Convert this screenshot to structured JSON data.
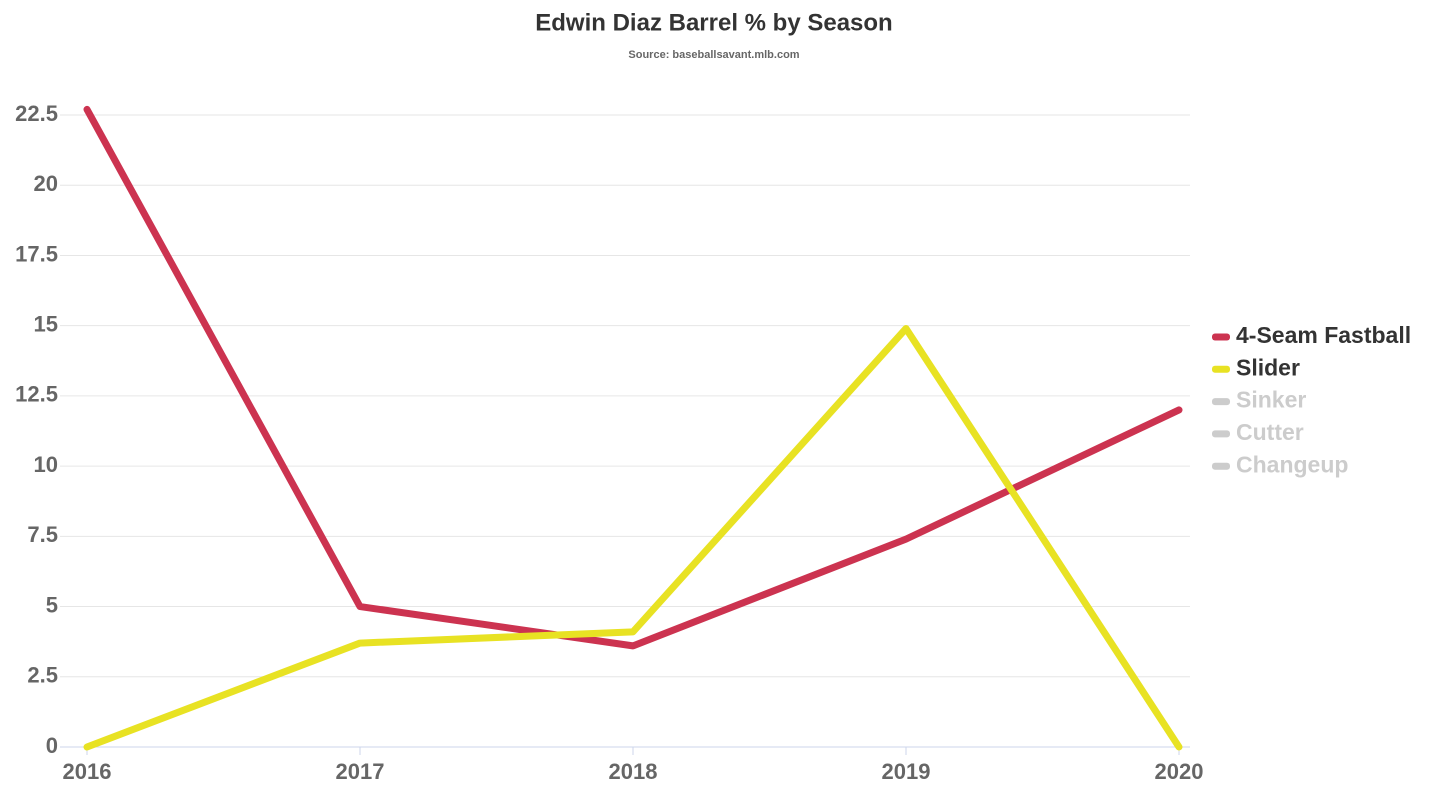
{
  "chart_data": {
    "type": "line",
    "title": "Edwin Diaz Barrel % by Season",
    "subtitle": "Source: baseballsavant.mlb.com",
    "x": [
      2016,
      2017,
      2018,
      2019,
      2020
    ],
    "xlim": [
      2016,
      2020
    ],
    "xticks": [
      2016,
      2017,
      2018,
      2019,
      2020
    ],
    "ylim": [
      0,
      22.5
    ],
    "yticks": [
      0,
      2.5,
      5,
      7.5,
      10,
      12.5,
      15,
      17.5,
      20,
      22.5
    ],
    "grid": true,
    "legend": "right",
    "series": [
      {
        "name": "4-Seam Fastball",
        "color": "#cc3350",
        "visible": true,
        "values": [
          22.7,
          5.0,
          3.6,
          7.4,
          12.0
        ]
      },
      {
        "name": "Slider",
        "color": "#e8e223",
        "visible": true,
        "values": [
          0,
          3.7,
          4.1,
          14.9,
          0
        ]
      },
      {
        "name": "Sinker",
        "color": "#cccccc",
        "visible": false,
        "values": [
          null,
          null,
          null,
          null,
          null
        ]
      },
      {
        "name": "Cutter",
        "color": "#cccccc",
        "visible": false,
        "values": [
          null,
          null,
          null,
          null,
          null
        ]
      },
      {
        "name": "Changeup",
        "color": "#cccccc",
        "visible": false,
        "values": [
          null,
          null,
          null,
          null,
          null
        ]
      }
    ]
  }
}
